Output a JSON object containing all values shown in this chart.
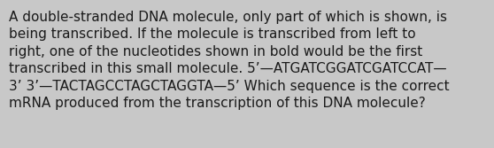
{
  "background_color": "#c8c8c8",
  "text_color": "#1a1a1a",
  "line1": "A double-stranded DNA molecule, only part of which is shown, is",
  "line2": "being transcribed. If the molecule is transcribed from left to",
  "line3": "right, one of the nucleotides shown in bold would be the first",
  "line4": "transcribed in this small molecule. 5’—ATGATCGGATCGATCCAT—",
  "line5": "3’ 3’—TACTAGCCTAGCTAGGTA—5’ Which sequence is the correct",
  "line6": "mRNA produced from the transcription of this DNA molecule?",
  "fontsize": 11.0,
  "figwidth": 5.58,
  "figheight": 1.67,
  "dpi": 100
}
